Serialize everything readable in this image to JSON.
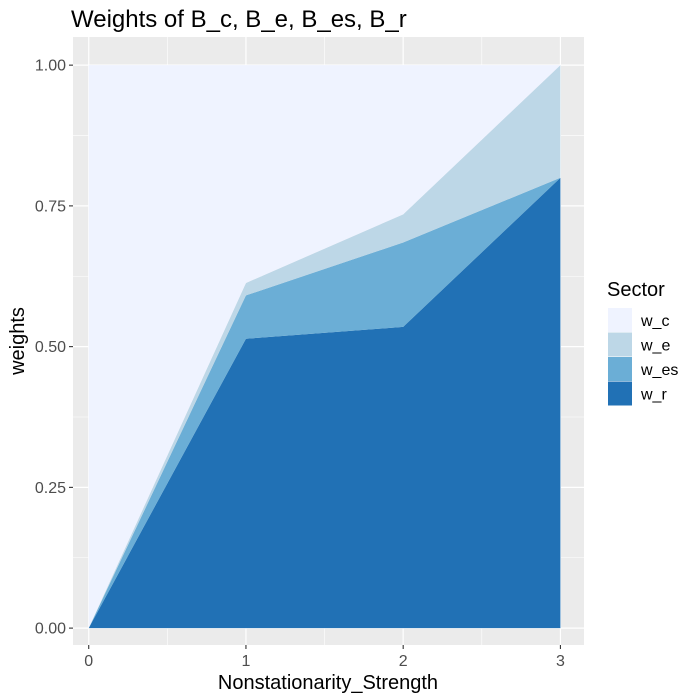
{
  "chart_data": {
    "type": "area",
    "stacked": true,
    "title": "Weights of B_c, B_e, B_es, B_r",
    "xlabel": "Nonstationarity_Strength",
    "ylabel": "weights",
    "x": [
      0,
      1,
      2,
      3
    ],
    "xticks": [
      "0",
      "1",
      "2",
      "3"
    ],
    "yticks": [
      "0.00",
      "0.25",
      "0.50",
      "0.75",
      "1.00"
    ],
    "xlim": [
      -0.1,
      3.15
    ],
    "ylim": [
      -0.03,
      1.05
    ],
    "grid": true,
    "legend_title": "Sector",
    "legend_position": "right",
    "series": [
      {
        "name": "w_c",
        "color": "#eff3ff",
        "values": [
          1.0,
          0.387,
          0.265,
          0.0
        ]
      },
      {
        "name": "w_e",
        "color": "#bdd7e7",
        "values": [
          0.0,
          0.022,
          0.05,
          0.2
        ]
      },
      {
        "name": "w_es",
        "color": "#6baed6",
        "values": [
          0.0,
          0.077,
          0.15,
          0.0
        ]
      },
      {
        "name": "w_r",
        "color": "#2171b5",
        "values": [
          0.0,
          0.514,
          0.535,
          0.8
        ]
      }
    ]
  }
}
